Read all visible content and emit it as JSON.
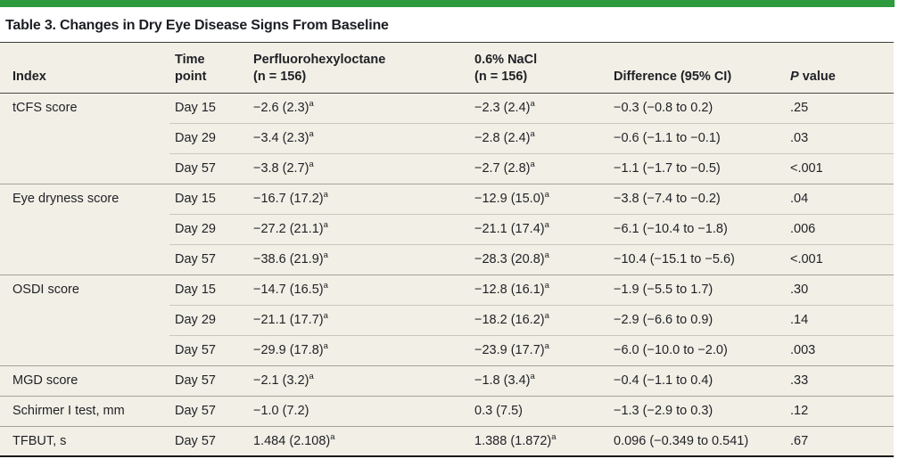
{
  "page": {
    "title": "Table 3. Changes in Dry Eye Disease Signs From Baseline"
  },
  "colors": {
    "accent_bar": "#2e9b3e",
    "table_background": "#f2efe6",
    "text": "#1f2126",
    "title_rule": "#3c3d38",
    "header_rule": "#4a4a44",
    "group_divider": "#a6a39a",
    "sub_divider": "#cac7be",
    "bottom_rule": "#1a1a1a"
  },
  "table": {
    "columns": {
      "index": "Index",
      "time_line1": "Time",
      "time_line2": "point",
      "pfh_line1": "Perfluorohexyloctane",
      "pfh_line2": "(n = 156)",
      "nacl_line1": "0.6% NaCl",
      "nacl_line2": "(n = 156)",
      "difference": "Difference (95% CI)",
      "p_italic": "P",
      "p_rest": " value"
    },
    "rows": [
      {
        "index": "tCFS score",
        "time": "Day 15",
        "pfh": "−2.6 (2.3)ᵃ",
        "nacl": "−2.3 (2.4)ᵃ",
        "diff": "−0.3 (−0.8 to 0.2)",
        "p": ".25",
        "group_start": true
      },
      {
        "index": "",
        "time": "Day 29",
        "pfh": "−3.4 (2.3)ᵃ",
        "nacl": "−2.8 (2.4)ᵃ",
        "diff": "−0.6 (−1.1 to −0.1)",
        "p": ".03",
        "group_start": false
      },
      {
        "index": "",
        "time": "Day 57",
        "pfh": "−3.8 (2.7)ᵃ",
        "nacl": "−2.7 (2.8)ᵃ",
        "diff": "−1.1 (−1.7 to −0.5)",
        "p": "<.001",
        "group_start": false
      },
      {
        "index": "Eye dryness score",
        "time": "Day 15",
        "pfh": "−16.7 (17.2)ᵃ",
        "nacl": "−12.9 (15.0)ᵃ",
        "diff": "−3.8 (−7.4 to −0.2)",
        "p": ".04",
        "group_start": true
      },
      {
        "index": "",
        "time": "Day 29",
        "pfh": "−27.2 (21.1)ᵃ",
        "nacl": "−21.1 (17.4)ᵃ",
        "diff": "−6.1 (−10.4 to −1.8)",
        "p": ".006",
        "group_start": false
      },
      {
        "index": "",
        "time": "Day 57",
        "pfh": "−38.6 (21.9)ᵃ",
        "nacl": "−28.3 (20.8)ᵃ",
        "diff": "−10.4 (−15.1 to −5.6)",
        "p": "<.001",
        "group_start": false
      },
      {
        "index": "OSDI score",
        "time": "Day 15",
        "pfh": "−14.7 (16.5)ᵃ",
        "nacl": "−12.8 (16.1)ᵃ",
        "diff": "−1.9 (−5.5 to 1.7)",
        "p": ".30",
        "group_start": true
      },
      {
        "index": "",
        "time": "Day 29",
        "pfh": "−21.1 (17.7)ᵃ",
        "nacl": "−18.2 (16.2)ᵃ",
        "diff": "−2.9 (−6.6 to 0.9)",
        "p": ".14",
        "group_start": false
      },
      {
        "index": "",
        "time": "Day 57",
        "pfh": "−29.9 (17.8)ᵃ",
        "nacl": "−23.9 (17.7)ᵃ",
        "diff": "−6.0 (−10.0 to −2.0)",
        "p": ".003",
        "group_start": false
      },
      {
        "index": "MGD score",
        "time": "Day 57",
        "pfh": "−2.1 (3.2)ᵃ",
        "nacl": "−1.8 (3.4)ᵃ",
        "diff": "−0.4 (−1.1 to 0.4)",
        "p": ".33",
        "group_start": true
      },
      {
        "index": "Schirmer I test, mm",
        "time": "Day 57",
        "pfh": "−1.0 (7.2)",
        "nacl": "0.3 (7.5)",
        "diff": "−1.3 (−2.9 to 0.3)",
        "p": ".12",
        "group_start": true
      },
      {
        "index": "TFBUT, s",
        "time": "Day 57",
        "pfh": "1.484 (2.108)ᵃ",
        "nacl": "1.388 (1.872)ᵃ",
        "diff": "0.096 (−0.349 to 0.541)",
        "p": ".67",
        "group_start": true
      }
    ]
  }
}
